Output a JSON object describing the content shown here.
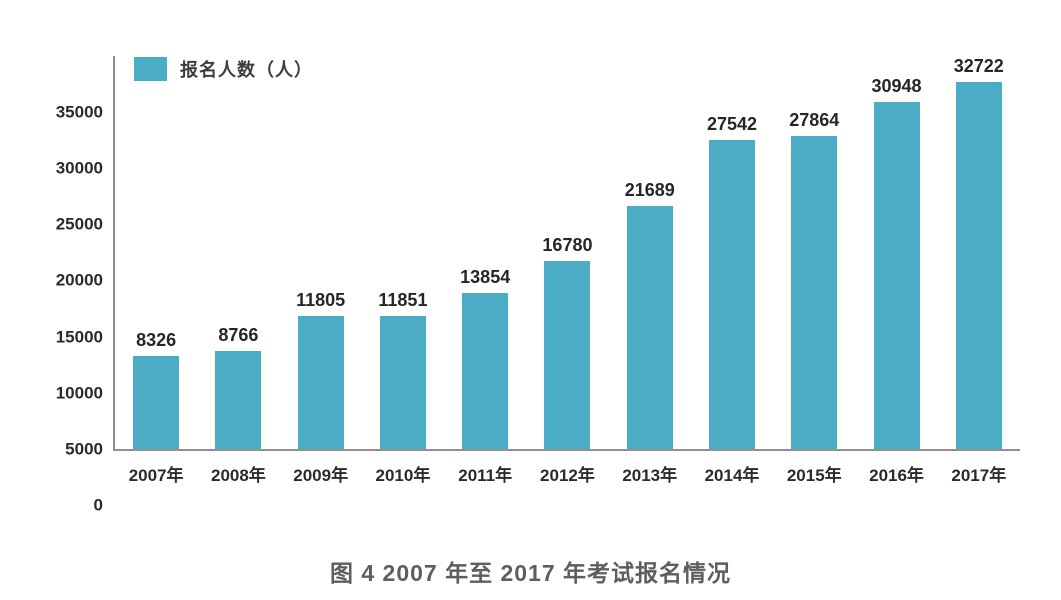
{
  "chart_data": {
    "type": "bar",
    "title": "图 4  2007 年至 2017 年考试报名情况",
    "legend": "报名人数（人）",
    "legend_position": "top-left",
    "categories": [
      "2007年",
      "2008年",
      "2009年",
      "2010年",
      "2011年",
      "2012年",
      "2013年",
      "2014年",
      "2015年",
      "2016年",
      "2017年"
    ],
    "values": [
      8326,
      8766,
      11805,
      11851,
      13854,
      16780,
      21689,
      27542,
      27864,
      30948,
      32722
    ],
    "xlabel": "",
    "ylabel": "",
    "ylim": [
      0,
      35000
    ],
    "yticks": [
      0,
      5000,
      10000,
      15000,
      20000,
      25000,
      30000,
      35000
    ],
    "grid": false,
    "colors": {
      "bar": "#4BACC6",
      "axis_line": "#909090",
      "tick_label": "#2B2B2B",
      "value_label": "#262626",
      "title": "#5E5E5E"
    }
  }
}
